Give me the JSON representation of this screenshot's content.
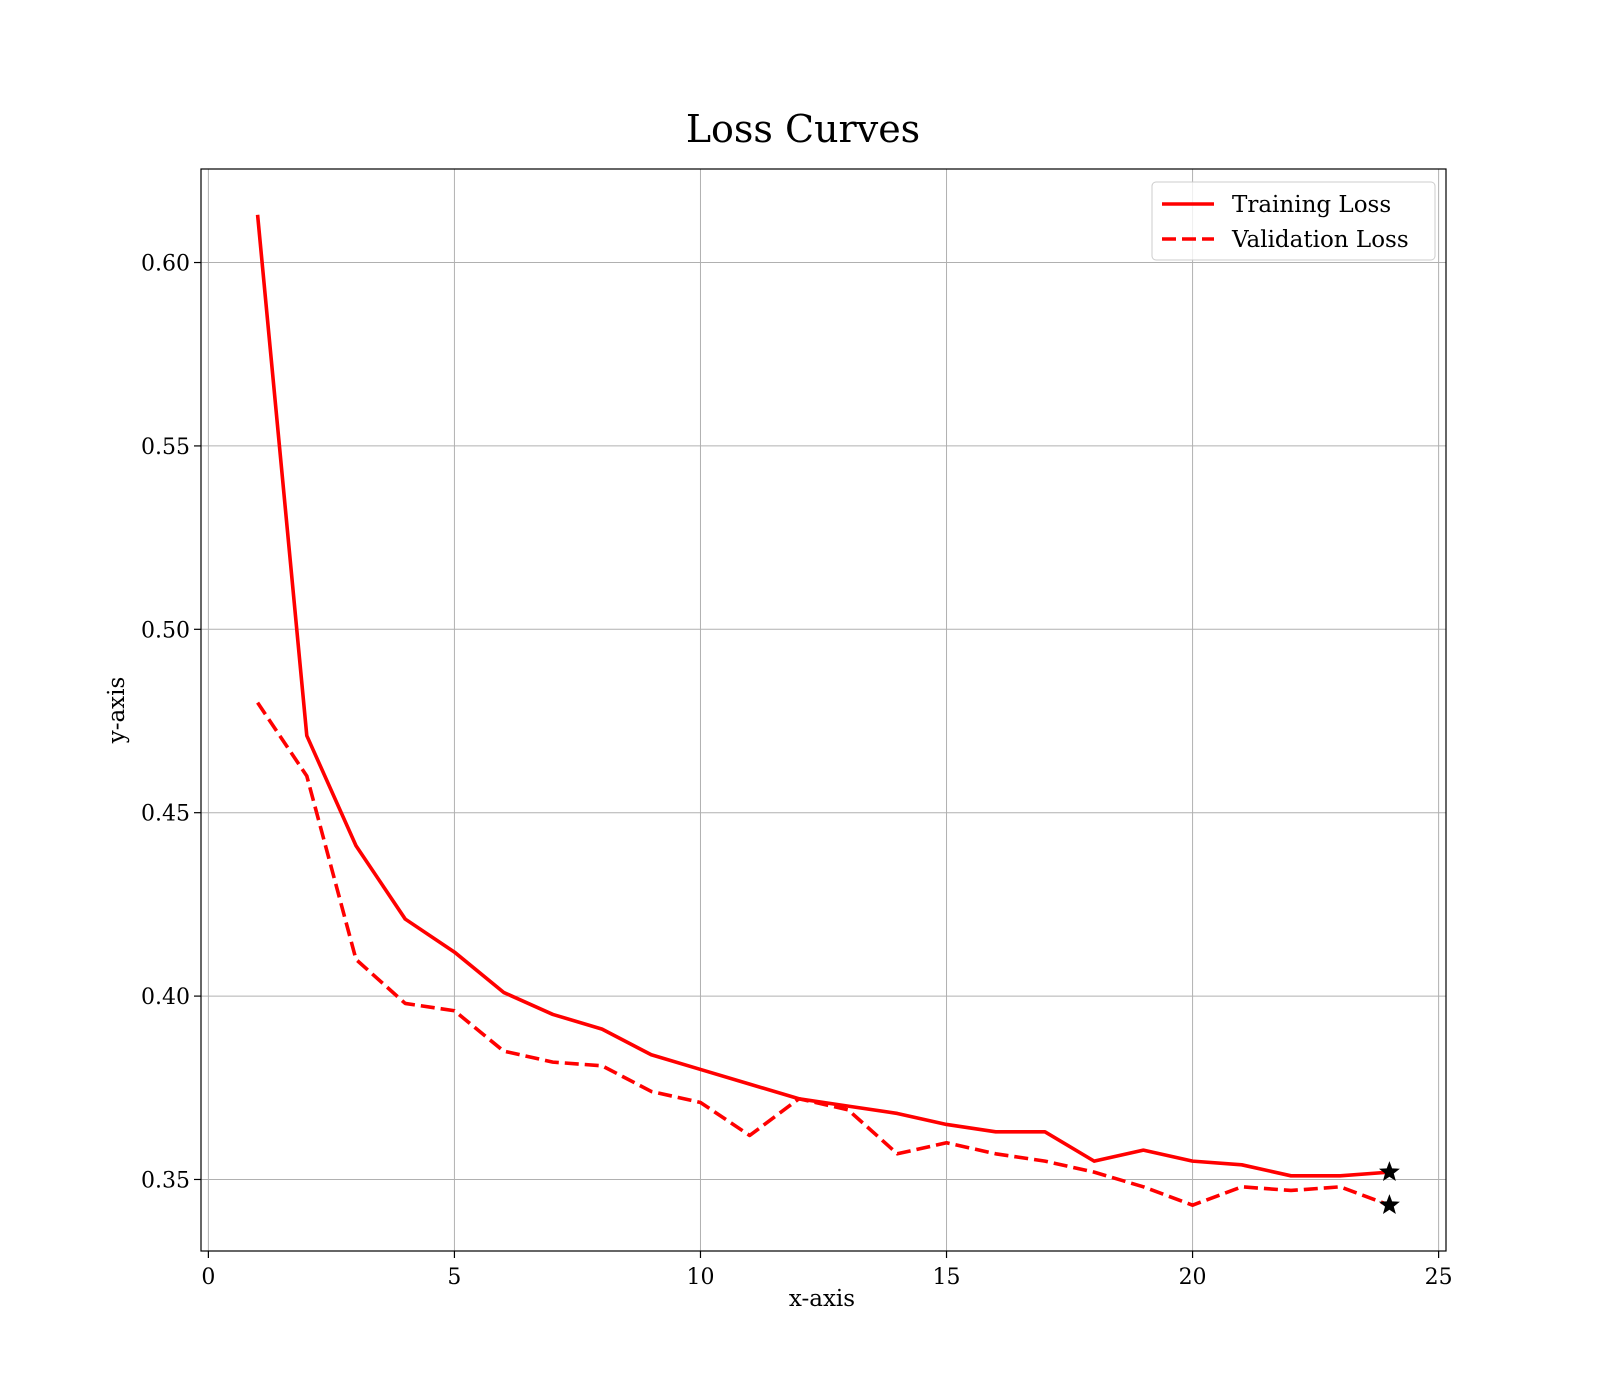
{
  "chart_data": {
    "type": "line",
    "title": "Loss Curves",
    "xlabel": "x-axis",
    "ylabel": "y-axis",
    "xlim": [
      -0.15,
      25.15
    ],
    "ylim": [
      0.3305,
      0.6255
    ],
    "x_ticks": [
      0,
      5,
      10,
      15,
      20,
      25
    ],
    "y_ticks": [
      0.35,
      0.4,
      0.45,
      0.5,
      0.55,
      0.6
    ],
    "x_tick_labels": [
      "0",
      "5",
      "10",
      "15",
      "20",
      "25"
    ],
    "y_tick_labels": [
      "0.35",
      "0.40",
      "0.45",
      "0.50",
      "0.55",
      "0.60"
    ],
    "grid": true,
    "legend_position": "top-right",
    "x": [
      1,
      2,
      3,
      4,
      5,
      6,
      7,
      8,
      9,
      10,
      11,
      12,
      13,
      14,
      15,
      16,
      17,
      18,
      19,
      20,
      21,
      22,
      23,
      24
    ],
    "series": [
      {
        "name": "Training Loss",
        "color": "#ff0000",
        "linestyle": "solid",
        "values": [
          0.613,
          0.471,
          0.441,
          0.421,
          0.412,
          0.401,
          0.395,
          0.391,
          0.384,
          0.38,
          0.376,
          0.372,
          0.37,
          0.368,
          0.365,
          0.363,
          0.363,
          0.355,
          0.358,
          0.355,
          0.354,
          0.351,
          0.351,
          0.352
        ]
      },
      {
        "name": "Validation Loss",
        "color": "#ff0000",
        "linestyle": "dashed",
        "values": [
          0.48,
          0.46,
          0.41,
          0.398,
          0.396,
          0.385,
          0.382,
          0.381,
          0.374,
          0.371,
          0.362,
          0.372,
          0.369,
          0.357,
          0.36,
          0.357,
          0.355,
          0.352,
          0.348,
          0.343,
          0.348,
          0.347,
          0.348,
          0.343
        ]
      }
    ],
    "markers": [
      {
        "series": "Training Loss",
        "x": 24,
        "y": 0.352,
        "shape": "star",
        "color": "#000000"
      },
      {
        "series": "Validation Loss",
        "x": 24,
        "y": 0.343,
        "shape": "star",
        "color": "#000000"
      }
    ]
  }
}
